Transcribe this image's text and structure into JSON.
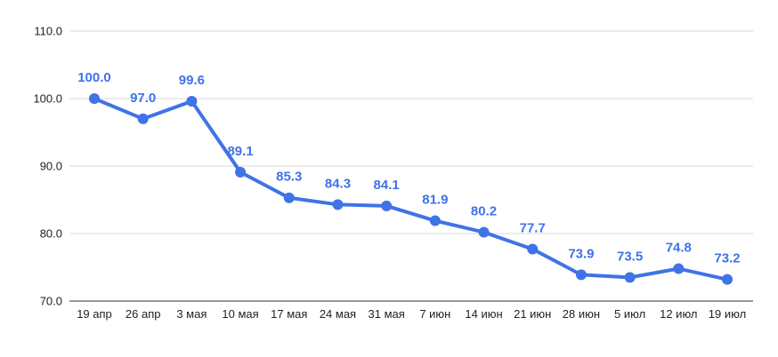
{
  "chart_data": {
    "type": "line",
    "title": "",
    "xlabel": "",
    "ylabel": "",
    "categories": [
      "19 апр",
      "26 апр",
      "3 мая",
      "10 мая",
      "17 мая",
      "24 мая",
      "31 мая",
      "7 июн",
      "14 июн",
      "21 июн",
      "28 июн",
      "5 июл",
      "12 июл",
      "19 июл"
    ],
    "series": [
      {
        "values": [
          100.0,
          97.0,
          99.6,
          89.1,
          85.3,
          84.3,
          84.1,
          81.9,
          80.2,
          77.7,
          73.9,
          73.5,
          74.8,
          73.2
        ],
        "color": "#3f73e6"
      }
    ],
    "data_labels": [
      "100.0",
      "97.0",
      "99.6",
      "89.1",
      "85.3",
      "84.3",
      "84.1",
      "81.9",
      "80.2",
      "77.7",
      "73.9",
      "73.5",
      "74.8",
      "73.2"
    ],
    "ylim": [
      70.0,
      110.0
    ],
    "y_ticks": [
      70.0,
      80.0,
      90.0,
      100.0,
      110.0
    ],
    "y_tick_labels": [
      "70.0",
      "80.0",
      "90.0",
      "100.0",
      "110.0"
    ],
    "grid": true,
    "gridline_color": "#d9d9d9",
    "legend": "none"
  }
}
